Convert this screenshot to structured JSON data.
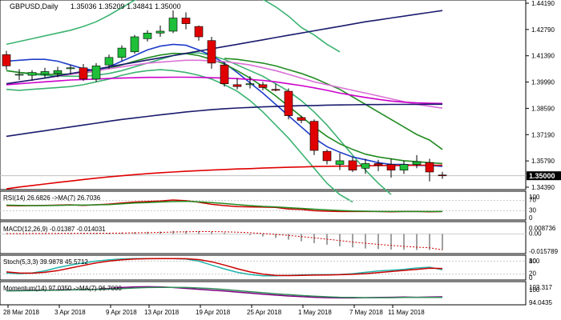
{
  "chart_data": [
    {
      "type": "candlestick",
      "title": "GBPUSD,Daily",
      "ohlc_readout": "1.35036 1.35209 1.34841 1.35000",
      "y_ticks": [
        "1.44190",
        "1.42790",
        "1.41390",
        "1.39990",
        "1.38590",
        "1.37190",
        "1.35790",
        "1.34390"
      ],
      "ylim": [
        1.3439,
        1.4419
      ],
      "current_price": 1.35,
      "current_price_label": "1.35000",
      "x_ticks": [
        "28 Mar 2018",
        "3 Apr 2018",
        "9 Apr 2018",
        "13 Apr 2018",
        "19 Apr 2018",
        "25 Apr 2018",
        "1 May 2018",
        "7 May 2018",
        "11 May 2018"
      ],
      "candles": [
        {
          "o": 1.4145,
          "h": 1.4165,
          "l": 1.4065,
          "c": 1.4085
        },
        {
          "o": 1.404,
          "h": 1.4068,
          "l": 1.401,
          "c": 1.404
        },
        {
          "o": 1.4035,
          "h": 1.4062,
          "l": 1.4005,
          "c": 1.405
        },
        {
          "o": 1.404,
          "h": 1.4075,
          "l": 1.402,
          "c": 1.4055
        },
        {
          "o": 1.4045,
          "h": 1.408,
          "l": 1.4025,
          "c": 1.406
        },
        {
          "o": 1.407,
          "h": 1.409,
          "l": 1.404,
          "c": 1.4075
        },
        {
          "o": 1.4075,
          "h": 1.4095,
          "l": 1.4005,
          "c": 1.4015
        },
        {
          "o": 1.4015,
          "h": 1.41,
          "l": 1.4,
          "c": 1.4085
        },
        {
          "o": 1.409,
          "h": 1.4145,
          "l": 1.407,
          "c": 1.413
        },
        {
          "o": 1.413,
          "h": 1.4195,
          "l": 1.411,
          "c": 1.418
        },
        {
          "o": 1.416,
          "h": 1.425,
          "l": 1.415,
          "c": 1.424
        },
        {
          "o": 1.423,
          "h": 1.4275,
          "l": 1.4215,
          "c": 1.426
        },
        {
          "o": 1.426,
          "h": 1.43,
          "l": 1.424,
          "c": 1.427
        },
        {
          "o": 1.427,
          "h": 1.438,
          "l": 1.426,
          "c": 1.434
        },
        {
          "o": 1.434,
          "h": 1.437,
          "l": 1.428,
          "c": 1.431
        },
        {
          "o": 1.4295,
          "h": 1.43,
          "l": 1.422,
          "c": 1.424
        },
        {
          "o": 1.422,
          "h": 1.424,
          "l": 1.407,
          "c": 1.41
        },
        {
          "o": 1.409,
          "h": 1.4105,
          "l": 1.3975,
          "c": 1.399
        },
        {
          "o": 1.3985,
          "h": 1.402,
          "l": 1.396,
          "c": 1.3975
        },
        {
          "o": 1.3985,
          "h": 1.403,
          "l": 1.3965,
          "c": 1.399
        },
        {
          "o": 1.3985,
          "h": 1.4,
          "l": 1.3955,
          "c": 1.397
        },
        {
          "o": 1.396,
          "h": 1.399,
          "l": 1.395,
          "c": 1.3955
        },
        {
          "o": 1.395,
          "h": 1.3965,
          "l": 1.38,
          "c": 1.382
        },
        {
          "o": 1.381,
          "h": 1.382,
          "l": 1.378,
          "c": 1.3795
        },
        {
          "o": 1.379,
          "h": 1.38,
          "l": 1.361,
          "c": 1.3635
        },
        {
          "o": 1.363,
          "h": 1.364,
          "l": 1.356,
          "c": 1.358
        },
        {
          "o": 1.356,
          "h": 1.362,
          "l": 1.353,
          "c": 1.358
        },
        {
          "o": 1.358,
          "h": 1.36,
          "l": 1.352,
          "c": 1.353
        },
        {
          "o": 1.354,
          "h": 1.359,
          "l": 1.351,
          "c": 1.3565
        },
        {
          "o": 1.3565,
          "h": 1.3585,
          "l": 1.3525,
          "c": 1.3555
        },
        {
          "o": 1.356,
          "h": 1.359,
          "l": 1.349,
          "c": 1.353
        },
        {
          "o": 1.353,
          "h": 1.358,
          "l": 1.351,
          "c": 1.356
        },
        {
          "o": 1.356,
          "h": 1.361,
          "l": 1.354,
          "c": 1.3575
        },
        {
          "o": 1.357,
          "h": 1.359,
          "l": 1.347,
          "c": 1.352
        },
        {
          "o": 1.3504,
          "h": 1.3521,
          "l": 1.3484,
          "c": 1.35
        }
      ],
      "overlays": [
        {
          "color": "#3cb371",
          "values": [
            1.42,
            1.4215,
            1.423,
            1.4245,
            1.426,
            1.4275,
            1.4295,
            1.432,
            1.4355,
            1.4395,
            1.4435,
            1.447,
            1.45,
            1.452,
            1.453,
            1.453,
            1.4525,
            1.4515,
            1.449,
            1.447,
            1.444,
            1.44,
            1.435,
            1.429,
            1.425,
            1.42,
            1.416
          ]
        },
        {
          "color": "#3cb371",
          "values": [
            1.406,
            1.405,
            1.404,
            1.4035,
            1.403,
            1.403,
            1.403,
            1.4035,
            1.4045,
            1.406,
            1.408,
            1.41,
            1.412,
            1.414,
            1.415,
            1.4155,
            1.414,
            1.412,
            1.409,
            1.406,
            1.403,
            1.399,
            1.395,
            1.39,
            1.384,
            1.377,
            1.369,
            1.361,
            1.353,
            1.346,
            1.34
          ]
        },
        {
          "color": "#3cb371",
          "values": [
            1.396,
            1.3955,
            1.396,
            1.3965,
            1.397,
            1.3975,
            1.3985,
            1.4,
            1.4015,
            1.4035,
            1.405,
            1.406,
            1.4065,
            1.406,
            1.405,
            1.4035,
            1.4015,
            1.3985,
            1.395,
            1.39,
            1.384,
            1.377,
            1.37,
            1.362,
            1.354,
            1.346,
            1.34,
            1.336
          ]
        },
        {
          "color": "#1f3dc8",
          "values": [
            1.411,
            1.4115,
            1.412,
            1.412,
            1.411,
            1.409,
            1.407,
            1.406,
            1.408,
            1.411,
            1.414,
            1.417,
            1.419,
            1.42,
            1.4195,
            1.417,
            1.414,
            1.41,
            1.405,
            1.3995,
            1.394,
            1.388,
            1.382,
            1.376,
            1.37,
            1.3655,
            1.3625,
            1.36,
            1.3585,
            1.357,
            1.356,
            1.356,
            1.3555,
            1.3555,
            1.355
          ]
        },
        {
          "color": "#228b22",
          "values": [
            1.406,
            1.405,
            1.4045,
            1.404,
            1.404,
            1.4042,
            1.4048,
            1.4058,
            1.4072,
            1.409,
            1.411,
            1.4128,
            1.4143,
            1.4152,
            1.415,
            1.414,
            1.412,
            1.4095,
            1.406,
            1.402,
            1.3975,
            1.3925,
            1.387,
            1.3815,
            1.376,
            1.371,
            1.367,
            1.364,
            1.3615,
            1.36,
            1.359,
            1.358,
            1.3575,
            1.357,
            1.3565
          ]
        },
        {
          "color": "#228b22",
          "values": [
            null,
            null,
            null,
            null,
            null,
            null,
            null,
            null,
            null,
            null,
            null,
            null,
            null,
            null,
            null,
            null,
            null,
            1.4125,
            1.412,
            1.411,
            1.41,
            1.4085,
            1.4065,
            1.4045,
            1.402,
            1.399,
            1.396,
            1.392,
            1.388,
            1.384,
            1.38,
            1.376,
            1.372,
            1.369,
            1.364
          ]
        },
        {
          "color": "#da70d6",
          "values": [
            1.399,
            1.4,
            1.401,
            1.402,
            1.403,
            1.404,
            1.405,
            1.406,
            1.407,
            1.408,
            1.409,
            1.41,
            1.4105,
            1.411,
            1.4115,
            1.4115,
            1.4112,
            1.4108,
            1.41,
            1.409,
            1.4075,
            1.406,
            1.404,
            1.402,
            1.4,
            1.3985,
            1.397,
            1.3955,
            1.394,
            1.3925,
            1.391,
            1.3895,
            1.388,
            1.387,
            1.386
          ]
        },
        {
          "color": "#cc00cc",
          "values": [
            1.3985,
            1.399,
            1.3995,
            1.4,
            1.4005,
            1.401,
            1.4012,
            1.4015,
            1.4018,
            1.402,
            1.4022,
            1.4024,
            1.4024,
            1.4025,
            1.4025,
            1.4024,
            1.4022,
            1.402,
            1.4017,
            1.4013,
            1.4008,
            1.4,
            1.399,
            1.398,
            1.3968,
            1.3955,
            1.394,
            1.3928,
            1.3917,
            1.3907,
            1.3898,
            1.3892,
            1.3888,
            1.3886,
            1.3885
          ]
        },
        {
          "color": "#1a1a6e",
          "values": [
            1.371,
            1.372,
            1.373,
            1.374,
            1.375,
            1.376,
            1.377,
            1.378,
            1.379,
            1.38,
            1.3808,
            1.3816,
            1.3824,
            1.3832,
            1.384,
            1.3846,
            1.3852,
            1.3857,
            1.3861,
            1.3864,
            1.3867,
            1.3869,
            1.3871,
            1.3873,
            1.3874,
            1.3876,
            1.3877,
            1.3878,
            1.3879,
            1.3879,
            1.388,
            1.388,
            1.388,
            1.3881,
            1.3881
          ]
        },
        {
          "color": "#1a1a6e",
          "values": [
            1.399,
            1.4,
            1.401,
            1.402,
            1.4032,
            1.4044,
            1.4056,
            1.4068,
            1.408,
            1.4092,
            1.4104,
            1.4116,
            1.4128,
            1.414,
            1.4152,
            1.4164,
            1.4176,
            1.4188,
            1.42,
            1.4212,
            1.4224,
            1.4236,
            1.4248,
            1.426,
            1.4272,
            1.4284,
            1.4296,
            1.4308,
            1.432,
            1.433,
            1.434,
            1.435,
            1.436,
            1.437,
            1.438
          ]
        },
        {
          "color": "#e00000",
          "values": [
            1.343,
            1.344,
            1.3448,
            1.3456,
            1.3464,
            1.3472,
            1.348,
            1.3487,
            1.3494,
            1.35,
            1.3506,
            1.3511,
            1.3516,
            1.352,
            1.3524,
            1.3527,
            1.353,
            1.3533,
            1.3536,
            1.3538,
            1.3541,
            1.3543,
            1.3545,
            1.3547,
            1.3549,
            1.355,
            1.3551,
            1.3552,
            1.3553,
            1.3554,
            1.3555,
            1.3555,
            1.3556,
            1.3556,
            1.3556
          ]
        }
      ]
    },
    {
      "type": "line",
      "panel": "RSI",
      "title": "RSI(14) 26.6826 ->MA(7) 26.7036",
      "y_ticks": [
        "100",
        "70",
        "30",
        "0"
      ],
      "ylim": [
        0,
        100
      ],
      "levels": [
        70,
        30
      ],
      "series": [
        {
          "color": "#cc0000",
          "values": [
            50,
            49,
            50,
            51,
            52,
            53,
            51,
            53,
            56,
            60,
            64,
            66,
            68,
            72,
            69,
            63,
            55,
            50,
            46,
            45,
            44,
            43,
            37,
            35,
            30,
            28,
            27,
            27,
            27,
            27,
            26,
            27,
            27,
            26,
            27
          ]
        },
        {
          "color": "#228b22",
          "values": [
            52,
            51,
            50,
            50,
            51,
            52,
            52,
            53,
            54,
            57,
            60,
            62,
            64,
            66,
            67,
            65,
            62,
            58,
            54,
            50,
            47,
            45,
            42,
            39,
            36,
            33,
            31,
            29,
            28,
            27,
            27,
            27,
            27,
            27,
            27
          ]
        }
      ]
    },
    {
      "type": "bar",
      "panel": "MACD",
      "title": "MACD(12,26,9) -0.01387 -0.014031",
      "y_ticks": [
        "0.008736",
        "0.00",
        "-0.015789"
      ],
      "ylim": [
        -0.015789,
        0.008736
      ],
      "values": [
        0.0002,
        0.0003,
        0.0004,
        0.0004,
        0.0005,
        0.0006,
        0.0006,
        0.0007,
        0.0009,
        0.0012,
        0.0016,
        0.0019,
        0.0022,
        0.0027,
        0.0028,
        0.0026,
        0.002,
        0.0012,
        0.0002,
        -0.001,
        -0.0022,
        -0.0035,
        -0.005,
        -0.0064,
        -0.008,
        -0.0094,
        -0.0108,
        -0.0118,
        -0.0127,
        -0.0133,
        -0.0137,
        -0.0139,
        -0.0141,
        -0.014,
        -0.0139
      ],
      "signal": [
        0.0003,
        0.0003,
        0.0004,
        0.0004,
        0.0005,
        0.0005,
        0.0006,
        0.0006,
        0.0007,
        0.0008,
        0.001,
        0.0012,
        0.0014,
        0.0017,
        0.0019,
        0.0021,
        0.0021,
        0.0019,
        0.0016,
        0.0011,
        0.0004,
        -0.0004,
        -0.0013,
        -0.0023,
        -0.0034,
        -0.0046,
        -0.0058,
        -0.007,
        -0.0081,
        -0.0091,
        -0.01,
        -0.0108,
        -0.0116,
        -0.0121,
        -0.014
      ]
    },
    {
      "type": "line",
      "panel": "Stochastic",
      "title": "Stoch(5,3,3) 39.9878 45.5712",
      "y_ticks": [
        "100",
        "80",
        "20",
        "0"
      ],
      "ylim": [
        0,
        100
      ],
      "levels": [
        80,
        20
      ],
      "series": [
        {
          "color": "#20b2aa",
          "values": [
            25,
            22,
            25,
            35,
            50,
            62,
            72,
            80,
            86,
            90,
            92,
            92,
            92,
            92,
            90,
            80,
            62,
            44,
            28,
            18,
            12,
            12,
            14,
            16,
            17,
            17,
            18,
            22,
            28,
            34,
            38,
            42,
            48,
            52,
            40
          ]
        },
        {
          "color": "#cc0000",
          "values": [
            30,
            25,
            24,
            28,
            36,
            48,
            60,
            72,
            80,
            86,
            90,
            91,
            92,
            92,
            91,
            87,
            77,
            62,
            45,
            30,
            20,
            14,
            13,
            14,
            15,
            16,
            17,
            19,
            22,
            27,
            32,
            37,
            42,
            47,
            46
          ]
        }
      ]
    },
    {
      "type": "line",
      "panel": "Momentum",
      "title": "Momentum(14) 97.0350 ->MA(7) 96.7000",
      "y_ticks": [
        "103.317",
        "100",
        "94.0435"
      ],
      "ylim": [
        94.0435,
        103.317
      ],
      "series": [
        {
          "color": "#800080",
          "values": [
            99.8,
            99.9,
            100.0,
            100.1,
            100.2,
            100.3,
            100.3,
            100.5,
            100.9,
            101.3,
            101.6,
            101.7,
            101.6,
            101.3,
            100.9,
            100.5,
            100.1,
            99.7,
            99.2,
            98.7,
            98.2,
            97.8,
            97.4,
            97.1,
            96.8,
            96.6,
            96.5,
            96.5,
            96.6,
            96.7,
            96.8,
            96.9,
            96.8,
            96.9,
            97.0
          ]
        },
        {
          "color": "#2e8b57",
          "values": [
            99.8,
            99.8,
            99.9,
            100.0,
            100.1,
            100.2,
            100.3,
            100.4,
            100.6,
            100.8,
            101.1,
            101.3,
            101.4,
            101.4,
            101.3,
            101.1,
            100.8,
            100.4,
            99.9,
            99.4,
            98.9,
            98.4,
            98.0,
            97.6,
            97.3,
            97.0,
            96.8,
            96.7,
            96.6,
            96.6,
            96.6,
            96.7,
            96.7,
            96.7,
            96.7
          ]
        }
      ]
    }
  ]
}
